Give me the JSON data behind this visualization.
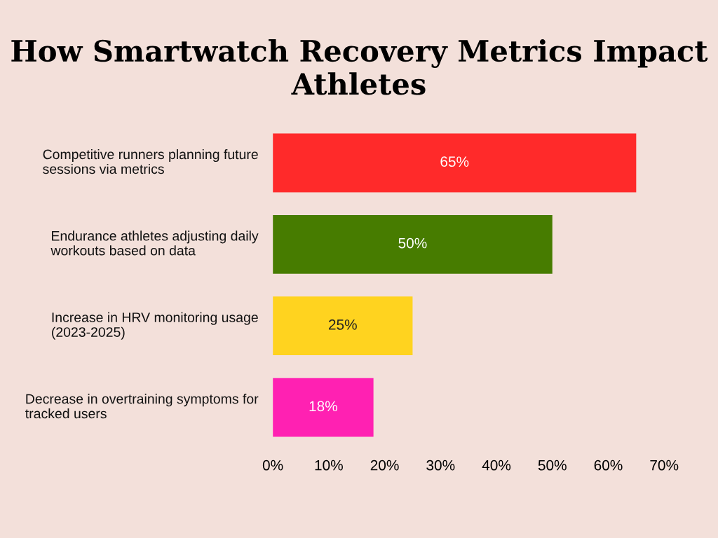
{
  "chart_data": {
    "type": "bar",
    "orientation": "horizontal",
    "title": "How Smartwatch Recovery Metrics Impact Athletes",
    "categories": [
      "Competitive runners planning future sessions via metrics",
      "Endurance athletes adjusting daily workouts based on data",
      "Increase in HRV monitoring usage (2023-2025)",
      "Decrease in overtraining symptoms for tracked users"
    ],
    "values": [
      65,
      50,
      25,
      18
    ],
    "colors": [
      "#ff2a2a",
      "#477c00",
      "#ffd31f",
      "#ff21b2"
    ],
    "value_labels": [
      "65%",
      "50%",
      "25%",
      "18%"
    ],
    "xlim": [
      0,
      70
    ],
    "xticks": [
      {
        "value": 0,
        "label": "0%"
      },
      {
        "value": 10,
        "label": "10%"
      },
      {
        "value": 20,
        "label": "20%"
      },
      {
        "value": 30,
        "label": "30%"
      },
      {
        "value": 40,
        "label": "40%"
      },
      {
        "value": 50,
        "label": "50%"
      },
      {
        "value": 60,
        "label": "60%"
      },
      {
        "value": 70,
        "label": "70%"
      }
    ],
    "grid": false,
    "legend": false
  }
}
